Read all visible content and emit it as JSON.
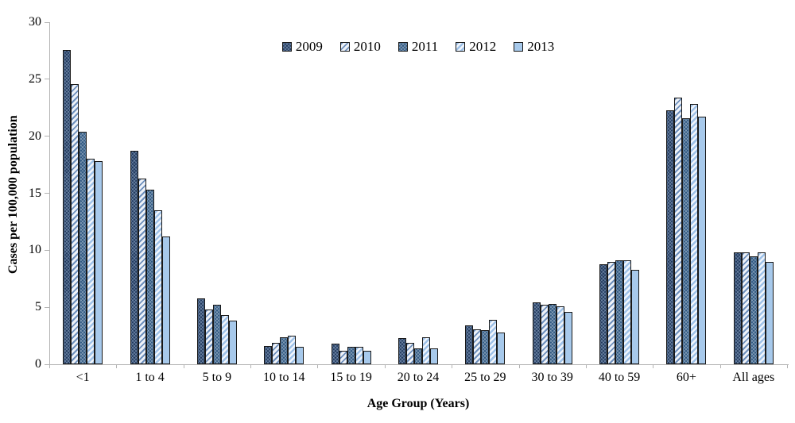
{
  "chart_data": {
    "type": "bar",
    "title": "",
    "xlabel": "Age Group (Years)",
    "ylabel": "Cases per 100,000 population",
    "ylim": [
      0,
      30
    ],
    "ytick_step": 5,
    "grid": false,
    "legend_position": "top-center-inside",
    "categories": [
      "<1",
      "1 to 4",
      "5 to 9",
      "10 to 14",
      "15 to 19",
      "20 to 24",
      "25 to 29",
      "30 to 39",
      "40 to 59",
      "60+",
      "All ages"
    ],
    "series": [
      {
        "name": "2009",
        "values": [
          27.6,
          18.7,
          5.8,
          1.6,
          1.8,
          2.3,
          3.4,
          5.4,
          8.8,
          22.3,
          9.8
        ]
      },
      {
        "name": "2010",
        "values": [
          24.6,
          16.3,
          4.8,
          1.9,
          1.2,
          1.9,
          3.1,
          5.2,
          9.0,
          23.4,
          9.8
        ]
      },
      {
        "name": "2011",
        "values": [
          20.4,
          15.3,
          5.2,
          2.4,
          1.5,
          1.4,
          3.0,
          5.3,
          9.1,
          21.6,
          9.5
        ]
      },
      {
        "name": "2012",
        "values": [
          18.0,
          13.5,
          4.3,
          2.5,
          1.5,
          2.4,
          3.9,
          5.1,
          9.1,
          22.8,
          9.8
        ]
      },
      {
        "name": "2013",
        "values": [
          17.8,
          11.2,
          3.8,
          1.5,
          1.2,
          1.4,
          2.8,
          4.6,
          8.3,
          21.7,
          9.0
        ]
      }
    ],
    "series_colors": [
      "#223a5e",
      "#6d8fbc",
      "#2e5882",
      "#9fc2e8",
      "#a7c9eb"
    ],
    "y_tick_labels": [
      "0",
      "5",
      "10",
      "15",
      "20",
      "25",
      "30"
    ]
  }
}
